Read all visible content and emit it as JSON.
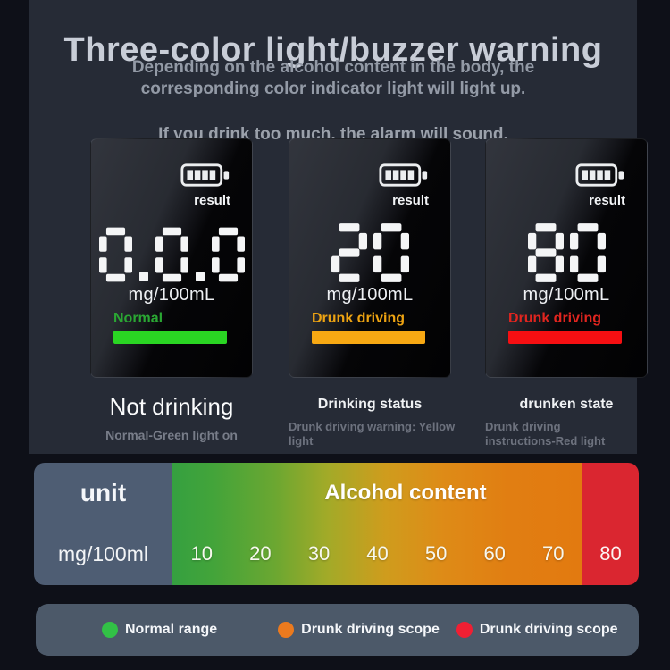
{
  "header": {
    "title": "Three-color light/buzzer warning",
    "subtitle": "Depending on the alcohol content in the body, the corresponding color indicator light will light up.",
    "warning": "If you drink too much, the alarm will sound."
  },
  "screens": [
    {
      "result_label": "result",
      "reading": "0.0.0",
      "unit": "mg/100mL",
      "status": "Normal",
      "status_color": "#2aa733",
      "bar_color": "#2ad523",
      "caption": "Not drinking",
      "caption_sub": "Normal-Green light on"
    },
    {
      "result_label": "result",
      "reading": "20",
      "unit": "mg/100mL",
      "status": "Drunk driving",
      "status_color": "#edа312",
      "status_color_fix": "#eda312",
      "caption": "Drinking status",
      "bar_color": "#f7a813",
      "caption_sub": "Drunk driving warning: Yellow light"
    },
    {
      "result_label": "result",
      "reading": "80",
      "unit": "mg/100mL",
      "status": "Drunk driving",
      "status_color": "#e1251f",
      "bar_color": "#f60f12",
      "caption": "drunken state",
      "caption_sub": "Drunk driving instructions-Red light"
    }
  ],
  "table": {
    "unit_header": "unit",
    "unit_value": "mg/100ml",
    "content_header": "Alcohol content",
    "values": [
      "10",
      "20",
      "30",
      "40",
      "50",
      "60",
      "70"
    ],
    "danger_value": "80",
    "unit_col_color": "#4e5d73",
    "danger_col_color": "#da2630",
    "gradient_start_color": "#35a040",
    "gradient_end_color": "#e27a10"
  },
  "legend": {
    "items": [
      {
        "label": "Normal range",
        "color": "#32c146"
      },
      {
        "label": "Drunk driving scope",
        "color": "#eb7a1e"
      },
      {
        "label": "Drunk driving scope",
        "color": "#f01f33"
      }
    ]
  },
  "chart_data": {
    "type": "table",
    "title": "Alcohol content",
    "unit": "mg/100ml",
    "categories": [
      10,
      20,
      30,
      40,
      50,
      60,
      70,
      80
    ],
    "zones": [
      {
        "label": "Normal range",
        "color_name": "green",
        "example_reading": "0.0.0"
      },
      {
        "label": "Drunk driving scope",
        "color_name": "orange",
        "example_reading": "20"
      },
      {
        "label": "Drunk driving scope",
        "color_name": "red",
        "example_reading": "80"
      }
    ]
  }
}
